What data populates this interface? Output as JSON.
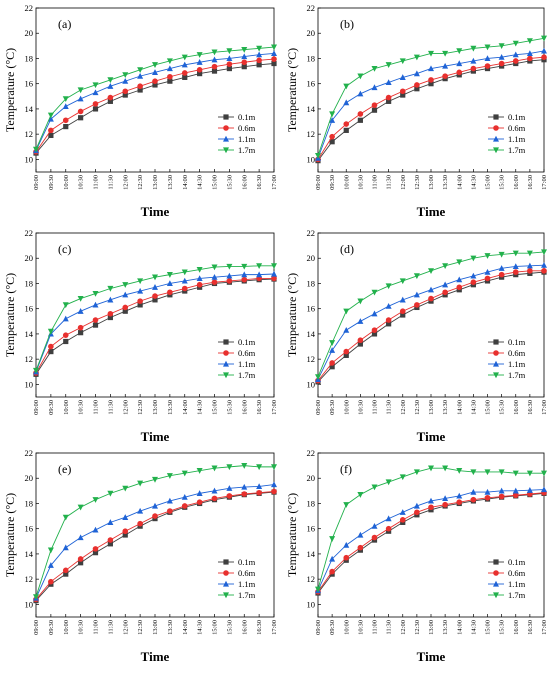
{
  "figure": {
    "colors": {
      "s01": "#3f3f3f",
      "s06": "#e8302e",
      "s11": "#1f63d6",
      "s17": "#22b14c"
    }
  },
  "chart_data": [
    {
      "type": "line",
      "panel_label": "(a)",
      "x": [
        "09:00",
        "09:30",
        "10:00",
        "10:30",
        "11:00",
        "11:30",
        "12:00",
        "12:30",
        "13:00",
        "13:30",
        "14:00",
        "14:30",
        "15:00",
        "15:30",
        "16:00",
        "16:30",
        "17:00"
      ],
      "xlabel": "Time",
      "ylabel": "Temperature (°C)",
      "ylim": [
        9,
        22
      ],
      "yticks": [
        10,
        12,
        14,
        16,
        18,
        20,
        22
      ],
      "legend_position": "bottom-right",
      "series": [
        {
          "name": "0.1m",
          "color": "#3f3f3f",
          "marker": "square",
          "values": [
            10.5,
            11.9,
            12.6,
            13.3,
            14.0,
            14.6,
            15.1,
            15.5,
            15.9,
            16.2,
            16.5,
            16.8,
            17.0,
            17.2,
            17.35,
            17.5,
            17.6
          ]
        },
        {
          "name": "0.6m",
          "color": "#e8302e",
          "marker": "circle",
          "values": [
            10.6,
            12.3,
            13.1,
            13.8,
            14.4,
            14.9,
            15.4,
            15.8,
            16.2,
            16.55,
            16.85,
            17.1,
            17.35,
            17.55,
            17.7,
            17.85,
            17.95
          ]
        },
        {
          "name": "1.1m",
          "color": "#1f63d6",
          "marker": "triangle-up",
          "values": [
            10.7,
            13.2,
            14.2,
            14.8,
            15.3,
            15.8,
            16.2,
            16.6,
            16.9,
            17.2,
            17.5,
            17.7,
            17.9,
            18.0,
            18.15,
            18.3,
            18.4
          ]
        },
        {
          "name": "1.7m",
          "color": "#22b14c",
          "marker": "triangle-down",
          "values": [
            10.8,
            13.5,
            14.8,
            15.5,
            15.9,
            16.3,
            16.7,
            17.1,
            17.5,
            17.8,
            18.1,
            18.3,
            18.5,
            18.6,
            18.7,
            18.8,
            18.9
          ]
        }
      ]
    },
    {
      "type": "line",
      "panel_label": "(b)",
      "x": [
        "09:00",
        "09:30",
        "10:00",
        "10:30",
        "11:00",
        "11:30",
        "12:00",
        "12:30",
        "13:00",
        "13:30",
        "14:00",
        "14:30",
        "15:00",
        "15:30",
        "16:00",
        "16:30",
        "17:00"
      ],
      "xlabel": "Time",
      "ylabel": "Temperature (°C)",
      "ylim": [
        9,
        22
      ],
      "yticks": [
        10,
        12,
        14,
        16,
        18,
        20,
        22
      ],
      "legend_position": "bottom-right",
      "series": [
        {
          "name": "0.1m",
          "color": "#3f3f3f",
          "marker": "square",
          "values": [
            9.9,
            11.4,
            12.3,
            13.1,
            13.9,
            14.6,
            15.1,
            15.6,
            16.0,
            16.4,
            16.7,
            17.0,
            17.2,
            17.4,
            17.6,
            17.8,
            17.9
          ]
        },
        {
          "name": "0.6m",
          "color": "#e8302e",
          "marker": "circle",
          "values": [
            10.0,
            11.8,
            12.8,
            13.6,
            14.3,
            14.9,
            15.4,
            15.9,
            16.3,
            16.6,
            16.9,
            17.2,
            17.4,
            17.6,
            17.8,
            18.0,
            18.1
          ]
        },
        {
          "name": "1.1m",
          "color": "#1f63d6",
          "marker": "triangle-up",
          "values": [
            10.1,
            13.1,
            14.5,
            15.2,
            15.7,
            16.1,
            16.5,
            16.8,
            17.2,
            17.4,
            17.6,
            17.8,
            18.0,
            18.1,
            18.3,
            18.4,
            18.6
          ]
        },
        {
          "name": "1.7m",
          "color": "#22b14c",
          "marker": "triangle-down",
          "values": [
            10.3,
            13.6,
            15.8,
            16.6,
            17.2,
            17.5,
            17.8,
            18.1,
            18.4,
            18.4,
            18.6,
            18.8,
            18.9,
            19.0,
            19.2,
            19.4,
            19.6
          ]
        }
      ]
    },
    {
      "type": "line",
      "panel_label": "(c)",
      "x": [
        "09:00",
        "09:30",
        "10:00",
        "10:30",
        "11:00",
        "11:30",
        "12:00",
        "12:30",
        "13:00",
        "13:30",
        "14:00",
        "14:30",
        "15:00",
        "15:30",
        "16:00",
        "16:30",
        "17:00"
      ],
      "xlabel": "Time",
      "ylabel": "Temperature (°C)",
      "ylim": [
        9,
        22
      ],
      "yticks": [
        10,
        12,
        14,
        16,
        18,
        20,
        22
      ],
      "legend_position": "bottom-right",
      "series": [
        {
          "name": "0.1m",
          "color": "#3f3f3f",
          "marker": "square",
          "values": [
            10.8,
            12.6,
            13.4,
            14.1,
            14.7,
            15.3,
            15.8,
            16.3,
            16.7,
            17.1,
            17.4,
            17.7,
            18.0,
            18.1,
            18.2,
            18.3,
            18.35
          ]
        },
        {
          "name": "0.6m",
          "color": "#e8302e",
          "marker": "circle",
          "values": [
            10.9,
            13.0,
            13.9,
            14.5,
            15.1,
            15.6,
            16.1,
            16.6,
            17.0,
            17.3,
            17.6,
            17.9,
            18.1,
            18.2,
            18.3,
            18.4,
            18.4
          ]
        },
        {
          "name": "1.1m",
          "color": "#1f63d6",
          "marker": "triangle-up",
          "values": [
            11.0,
            14.0,
            15.2,
            15.8,
            16.3,
            16.7,
            17.1,
            17.4,
            17.7,
            18.0,
            18.2,
            18.4,
            18.5,
            18.6,
            18.7,
            18.7,
            18.75
          ]
        },
        {
          "name": "1.7m",
          "color": "#22b14c",
          "marker": "triangle-down",
          "values": [
            11.1,
            14.2,
            16.3,
            16.8,
            17.2,
            17.6,
            17.9,
            18.2,
            18.5,
            18.7,
            18.9,
            19.1,
            19.3,
            19.35,
            19.35,
            19.4,
            19.4
          ]
        }
      ]
    },
    {
      "type": "line",
      "panel_label": "(d)",
      "x": [
        "09:00",
        "09:30",
        "10:00",
        "10:30",
        "11:00",
        "11:30",
        "12:00",
        "12:30",
        "13:00",
        "13:30",
        "14:00",
        "14:30",
        "15:00",
        "15:30",
        "16:00",
        "16:30",
        "17:00"
      ],
      "xlabel": "Time",
      "ylabel": "Temperature (°C)",
      "ylim": [
        9,
        22
      ],
      "yticks": [
        10,
        12,
        14,
        16,
        18,
        20,
        22
      ],
      "legend_position": "bottom-right",
      "series": [
        {
          "name": "0.1m",
          "color": "#3f3f3f",
          "marker": "square",
          "values": [
            10.2,
            11.4,
            12.3,
            13.2,
            14.0,
            14.8,
            15.5,
            16.1,
            16.6,
            17.1,
            17.5,
            17.9,
            18.2,
            18.5,
            18.7,
            18.8,
            18.9
          ]
        },
        {
          "name": "0.6m",
          "color": "#e8302e",
          "marker": "circle",
          "values": [
            10.3,
            11.7,
            12.6,
            13.5,
            14.3,
            15.1,
            15.8,
            16.3,
            16.8,
            17.3,
            17.7,
            18.1,
            18.4,
            18.7,
            18.9,
            19.0,
            19.0
          ]
        },
        {
          "name": "1.1m",
          "color": "#1f63d6",
          "marker": "triangle-up",
          "values": [
            10.4,
            12.7,
            14.3,
            15.0,
            15.6,
            16.2,
            16.7,
            17.1,
            17.5,
            17.9,
            18.3,
            18.6,
            18.9,
            19.2,
            19.35,
            19.4,
            19.45
          ]
        },
        {
          "name": "1.7m",
          "color": "#22b14c",
          "marker": "triangle-down",
          "values": [
            10.6,
            13.3,
            15.8,
            16.6,
            17.3,
            17.8,
            18.2,
            18.6,
            19.0,
            19.4,
            19.7,
            20.0,
            20.2,
            20.3,
            20.4,
            20.4,
            20.5
          ]
        }
      ]
    },
    {
      "type": "line",
      "panel_label": "(e)",
      "x": [
        "09:00",
        "09:30",
        "10:00",
        "10:30",
        "11:00",
        "11:30",
        "12:00",
        "12:30",
        "13:00",
        "13:30",
        "14:00",
        "14:30",
        "15:00",
        "15:30",
        "16:00",
        "16:30",
        "17:00"
      ],
      "xlabel": "Time",
      "ylabel": "Temperature (°C)",
      "ylim": [
        9,
        22
      ],
      "yticks": [
        10,
        12,
        14,
        16,
        18,
        20,
        22
      ],
      "legend_position": "bottom-right",
      "series": [
        {
          "name": "0.1m",
          "color": "#3f3f3f",
          "marker": "square",
          "values": [
            10.3,
            11.6,
            12.4,
            13.3,
            14.1,
            14.8,
            15.5,
            16.2,
            16.8,
            17.3,
            17.7,
            18.0,
            18.3,
            18.5,
            18.7,
            18.8,
            18.9
          ]
        },
        {
          "name": "0.6m",
          "color": "#e8302e",
          "marker": "circle",
          "values": [
            10.4,
            11.8,
            12.7,
            13.6,
            14.4,
            15.1,
            15.8,
            16.4,
            17.0,
            17.4,
            17.8,
            18.1,
            18.4,
            18.6,
            18.75,
            18.85,
            18.95
          ]
        },
        {
          "name": "1.1m",
          "color": "#1f63d6",
          "marker": "triangle-up",
          "values": [
            10.5,
            13.1,
            14.5,
            15.3,
            15.9,
            16.5,
            16.9,
            17.4,
            17.8,
            18.2,
            18.5,
            18.8,
            19.0,
            19.2,
            19.3,
            19.35,
            19.5
          ]
        },
        {
          "name": "1.7m",
          "color": "#22b14c",
          "marker": "triangle-down",
          "values": [
            10.6,
            14.3,
            16.9,
            17.7,
            18.3,
            18.8,
            19.2,
            19.6,
            19.9,
            20.2,
            20.4,
            20.6,
            20.8,
            20.9,
            21.0,
            20.9,
            20.9
          ]
        }
      ]
    },
    {
      "type": "line",
      "panel_label": "(f)",
      "x": [
        "09:00",
        "09:30",
        "10:00",
        "10:30",
        "11:00",
        "11:30",
        "12:00",
        "12:30",
        "13:00",
        "13:30",
        "14:00",
        "14:30",
        "15:00",
        "15:30",
        "16:00",
        "16:30",
        "17:00"
      ],
      "xlabel": "Time",
      "ylabel": "Temperature (°C)",
      "ylim": [
        9,
        22
      ],
      "yticks": [
        10,
        12,
        14,
        16,
        18,
        20,
        22
      ],
      "legend_position": "bottom-right",
      "series": [
        {
          "name": "0.1m",
          "color": "#3f3f3f",
          "marker": "square",
          "values": [
            10.9,
            12.4,
            13.5,
            14.3,
            15.1,
            15.8,
            16.5,
            17.1,
            17.5,
            17.8,
            18.0,
            18.2,
            18.35,
            18.5,
            18.6,
            18.7,
            18.8
          ]
        },
        {
          "name": "0.6m",
          "color": "#e8302e",
          "marker": "circle",
          "values": [
            11.0,
            12.6,
            13.7,
            14.5,
            15.3,
            16.0,
            16.7,
            17.3,
            17.7,
            17.9,
            18.1,
            18.3,
            18.45,
            18.55,
            18.65,
            18.75,
            18.85
          ]
        },
        {
          "name": "1.1m",
          "color": "#1f63d6",
          "marker": "triangle-up",
          "values": [
            11.1,
            13.6,
            14.7,
            15.5,
            16.2,
            16.8,
            17.3,
            17.8,
            18.2,
            18.4,
            18.6,
            18.9,
            18.9,
            19.0,
            19.0,
            19.05,
            19.1
          ]
        },
        {
          "name": "1.7m",
          "color": "#22b14c",
          "marker": "triangle-down",
          "values": [
            11.2,
            15.2,
            17.9,
            18.7,
            19.3,
            19.7,
            20.1,
            20.5,
            20.8,
            20.8,
            20.6,
            20.5,
            20.5,
            20.5,
            20.4,
            20.4,
            20.4
          ]
        }
      ]
    }
  ]
}
